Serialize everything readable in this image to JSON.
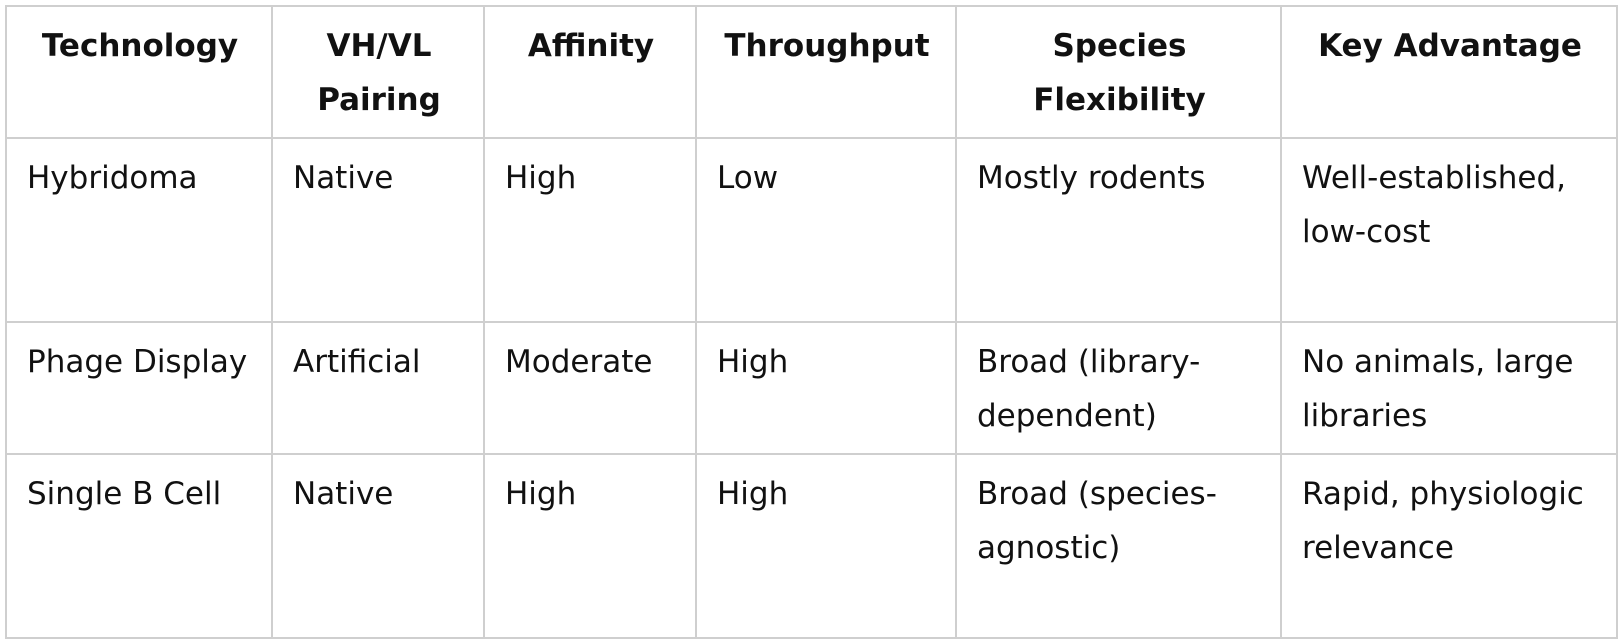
{
  "table": {
    "header": [
      "Technology",
      "VH/VL Pairing",
      "Affinity",
      "Throughput",
      "Species Flexibility",
      "Key Advantage"
    ],
    "rows": [
      [
        "Hybridoma",
        "Native",
        "High",
        "Low",
        "Mostly rodents",
        "Well-established, low-cost"
      ],
      [
        "Phage Display",
        "Artificial",
        "Moderate",
        "High",
        "Broad (library-dependent)",
        "No animals, large libraries"
      ],
      [
        "Single B Cell",
        "Native",
        "High",
        "High",
        "Broad (species-agnostic)",
        "Rapid, physiologic relevance"
      ]
    ]
  }
}
